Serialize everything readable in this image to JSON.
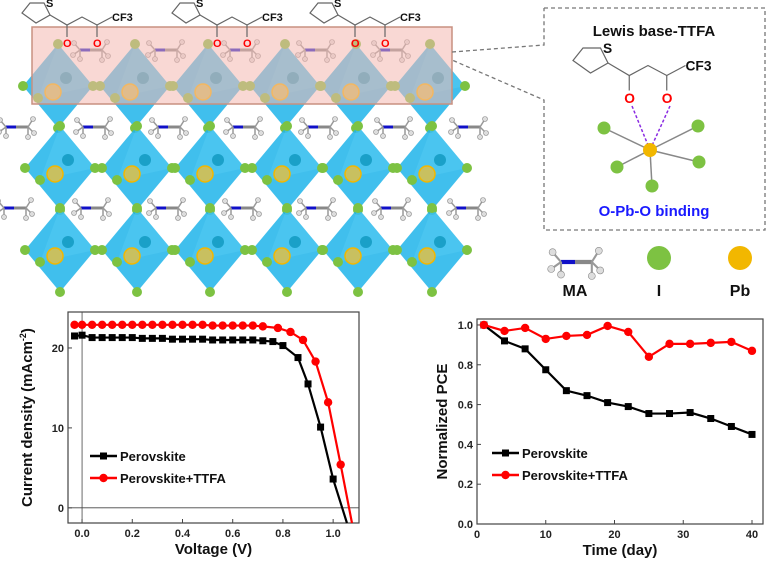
{
  "structure": {
    "molecule_label": "CF3",
    "sulfur_label": "S",
    "oxygen_label": "O",
    "inset_title": "Lewis base-TTFA",
    "inset_caption": "O-Pb-O binding",
    "legend": [
      {
        "label": "MA"
      },
      {
        "label": "I"
      },
      {
        "label": "Pb"
      }
    ],
    "colors": {
      "octahedron": "#1fb4ea",
      "iodine": "#7dc242",
      "lead": "#f2b700",
      "nitrogen": "#1010c8",
      "oxygen": "#ff0000",
      "highlight": "#f4b8b0",
      "caption": "#1a1aff"
    }
  },
  "chart_data": [
    {
      "type": "line",
      "title": "",
      "xlabel": "Voltage (V)",
      "ylabel": "Current density (mAcm",
      "ylabel_sup": "-2",
      "ylabel_end": ")",
      "xlim": [
        -0.056,
        1.103
      ],
      "ylim": [
        -1.9,
        24.5
      ],
      "xticks": [
        "0.0",
        "0.2",
        "0.4",
        "0.6",
        "0.8",
        "1.0"
      ],
      "xtick_values": [
        0,
        0.2,
        0.4,
        0.6,
        0.8,
        1.0
      ],
      "yticks": [
        "0",
        "10",
        "20"
      ],
      "ytick_values": [
        0,
        10,
        20
      ],
      "legend_position": "lower-left",
      "series": [
        {
          "name": "Perovskite",
          "color": "#000000",
          "marker": "square",
          "x": [
            -0.03,
            0,
            0.04,
            0.08,
            0.12,
            0.16,
            0.2,
            0.24,
            0.28,
            0.32,
            0.36,
            0.4,
            0.44,
            0.48,
            0.52,
            0.56,
            0.6,
            0.64,
            0.68,
            0.72,
            0.76,
            0.8,
            0.86,
            0.9,
            0.95,
            1.0,
            1.055
          ],
          "y": [
            21.5,
            21.6,
            21.3,
            21.3,
            21.3,
            21.3,
            21.3,
            21.2,
            21.2,
            21.2,
            21.1,
            21.1,
            21.1,
            21.1,
            21.0,
            21.0,
            21.0,
            21.0,
            21.0,
            20.9,
            20.8,
            20.3,
            18.8,
            15.5,
            10.1,
            3.6,
            -1.9
          ]
        },
        {
          "name": "Perovskite+TTFA",
          "color": "#ff0000",
          "marker": "circle",
          "x": [
            -0.03,
            0,
            0.04,
            0.08,
            0.12,
            0.16,
            0.2,
            0.24,
            0.28,
            0.32,
            0.36,
            0.4,
            0.44,
            0.48,
            0.52,
            0.56,
            0.6,
            0.64,
            0.68,
            0.72,
            0.78,
            0.83,
            0.88,
            0.93,
            0.98,
            1.03,
            1.075
          ],
          "y": [
            22.9,
            22.9,
            22.9,
            22.9,
            22.9,
            22.9,
            22.9,
            22.9,
            22.9,
            22.9,
            22.9,
            22.9,
            22.9,
            22.9,
            22.8,
            22.8,
            22.8,
            22.8,
            22.8,
            22.7,
            22.5,
            22.0,
            21.0,
            18.3,
            13.2,
            5.4,
            -1.9
          ]
        }
      ]
    },
    {
      "type": "line",
      "title": "",
      "xlabel": "Time (day)",
      "ylabel": "Normalized PCE",
      "xlim": [
        0,
        41.6
      ],
      "ylim": [
        0,
        1.03
      ],
      "xticks": [
        "0",
        "10",
        "20",
        "30",
        "40"
      ],
      "xtick_values": [
        0,
        10,
        20,
        30,
        40
      ],
      "yticks": [
        "0.0",
        "0.2",
        "0.4",
        "0.6",
        "0.8",
        "1.0"
      ],
      "ytick_values": [
        0,
        0.2,
        0.4,
        0.6,
        0.8,
        1.0
      ],
      "legend_position": "lower-left",
      "series": [
        {
          "name": "Perovskite",
          "color": "#000000",
          "marker": "square",
          "x": [
            1,
            4,
            7,
            10,
            13,
            16,
            19,
            22,
            25,
            28,
            31,
            34,
            37,
            40
          ],
          "y": [
            1.0,
            0.92,
            0.88,
            0.775,
            0.67,
            0.645,
            0.61,
            0.59,
            0.555,
            0.555,
            0.56,
            0.53,
            0.49,
            0.45
          ]
        },
        {
          "name": "Perovskite+TTFA",
          "color": "#ff0000",
          "marker": "circle",
          "x": [
            1,
            4,
            7,
            10,
            13,
            16,
            19,
            22,
            25,
            28,
            31,
            34,
            37,
            40
          ],
          "y": [
            1.0,
            0.97,
            0.985,
            0.93,
            0.945,
            0.95,
            0.995,
            0.965,
            0.84,
            0.905,
            0.905,
            0.91,
            0.915,
            0.87
          ]
        }
      ]
    }
  ]
}
